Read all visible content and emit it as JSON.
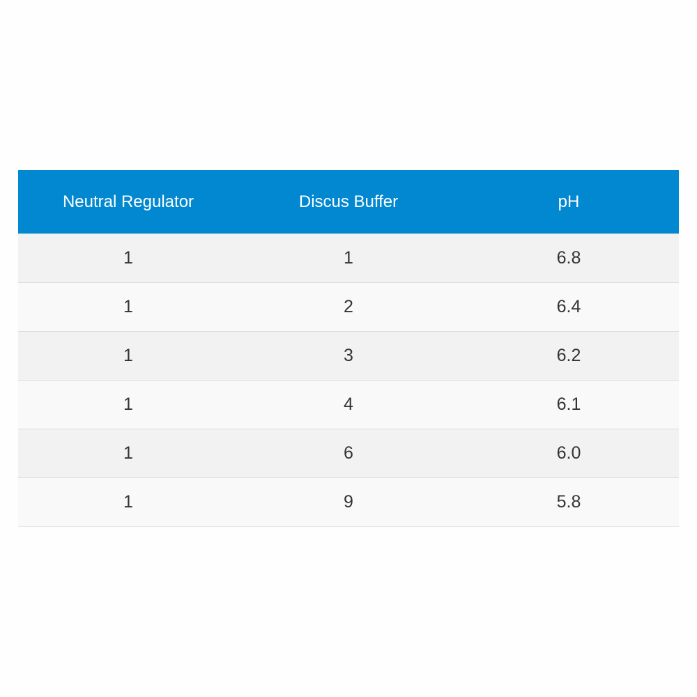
{
  "table": {
    "headers": [
      "Neutral Regulator",
      "Discus Buffer",
      "pH"
    ],
    "rows": [
      [
        "1",
        "1",
        "6.8"
      ],
      [
        "1",
        "2",
        "6.4"
      ],
      [
        "1",
        "3",
        "6.2"
      ],
      [
        "1",
        "4",
        "6.1"
      ],
      [
        "1",
        "6",
        "6.0"
      ],
      [
        "1",
        "9",
        "5.8"
      ]
    ],
    "header_color": "#0288d1"
  }
}
